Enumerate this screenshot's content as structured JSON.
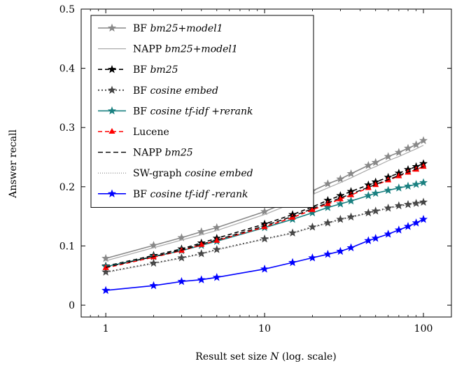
{
  "chart_data": {
    "type": "line",
    "xlabel_prefix": "Result set size ",
    "xlabel_var": "N",
    "xlabel_suffix": " (log. scale)",
    "ylabel": "Answer recall",
    "xscale": "log",
    "xlim": [
      0.7,
      150
    ],
    "ylim": [
      -0.02,
      0.5
    ],
    "xticks": [
      {
        "v": 1,
        "label": "1"
      },
      {
        "v": 10,
        "label": "10"
      },
      {
        "v": 100,
        "label": "100"
      }
    ],
    "yticks": [
      {
        "v": 0,
        "label": "0"
      },
      {
        "v": 0.1,
        "label": "0.1"
      },
      {
        "v": 0.2,
        "label": "0.2"
      },
      {
        "v": 0.3,
        "label": "0.3"
      },
      {
        "v": 0.4,
        "label": "0.4"
      },
      {
        "v": 0.5,
        "label": "0.5"
      }
    ],
    "grid": false,
    "legend_position": "top-left",
    "x": [
      1,
      2,
      3,
      4,
      5,
      10,
      15,
      20,
      25,
      30,
      35,
      45,
      50,
      60,
      70,
      80,
      90,
      100
    ],
    "series": [
      {
        "name": "BF",
        "name_italic": "bm25+model1",
        "color": "#888888",
        "dash": "",
        "marker": "star",
        "width": 1.6,
        "values": [
          0.079,
          0.101,
          0.114,
          0.124,
          0.131,
          0.158,
          0.178,
          0.193,
          0.205,
          0.213,
          0.222,
          0.236,
          0.241,
          0.251,
          0.258,
          0.265,
          0.271,
          0.278
        ]
      },
      {
        "name": "NAPP",
        "name_italic": "bm25+model1",
        "color": "#aaaaaa",
        "dash": "",
        "marker": "none",
        "width": 1.2,
        "values": [
          0.075,
          0.097,
          0.11,
          0.119,
          0.126,
          0.153,
          0.172,
          0.187,
          0.198,
          0.207,
          0.215,
          0.229,
          0.234,
          0.244,
          0.251,
          0.258,
          0.264,
          0.27
        ]
      },
      {
        "name": "BF",
        "name_italic": "bm25",
        "color": "#000000",
        "dash": "6,4",
        "marker": "star",
        "width": 1.6,
        "values": [
          0.066,
          0.084,
          0.095,
          0.105,
          0.113,
          0.137,
          0.153,
          0.166,
          0.177,
          0.185,
          0.192,
          0.203,
          0.208,
          0.216,
          0.223,
          0.229,
          0.234,
          0.239
        ]
      },
      {
        "name": "BF",
        "name_italic": "cosine embed",
        "color": "#444444",
        "dash": "2,3",
        "marker": "star",
        "width": 1.8,
        "values": [
          0.056,
          0.071,
          0.08,
          0.087,
          0.094,
          0.112,
          0.122,
          0.132,
          0.139,
          0.145,
          0.149,
          0.156,
          0.159,
          0.164,
          0.168,
          0.17,
          0.172,
          0.174
        ]
      },
      {
        "name": "BF",
        "name_italic": "cosine tf-idf +rerank",
        "color": "#1a8080",
        "dash": "",
        "marker": "star",
        "width": 1.6,
        "values": [
          0.065,
          0.082,
          0.092,
          0.101,
          0.108,
          0.131,
          0.145,
          0.156,
          0.165,
          0.171,
          0.176,
          0.185,
          0.189,
          0.194,
          0.198,
          0.201,
          0.204,
          0.207
        ]
      },
      {
        "name": "Lucene",
        "name_italic": "",
        "color": "#ff0000",
        "dash": "6,4",
        "marker": "triangle",
        "width": 1.6,
        "values": [
          0.063,
          0.081,
          0.092,
          0.102,
          0.109,
          0.132,
          0.148,
          0.161,
          0.171,
          0.179,
          0.186,
          0.198,
          0.203,
          0.211,
          0.218,
          0.224,
          0.229,
          0.234
        ]
      },
      {
        "name": "NAPP",
        "name_italic": "bm25",
        "color": "#000000",
        "dash": "7,4",
        "marker": "none",
        "width": 1.4,
        "values": [
          0.064,
          0.082,
          0.093,
          0.103,
          0.11,
          0.134,
          0.15,
          0.163,
          0.173,
          0.181,
          0.188,
          0.199,
          0.204,
          0.212,
          0.219,
          0.225,
          0.23,
          0.234
        ]
      },
      {
        "name": "SW-graph",
        "name_italic": "cosine embed",
        "color": "#777777",
        "dash": "1,2",
        "marker": "none",
        "width": 1.0,
        "values": [
          0.055,
          0.07,
          0.079,
          0.086,
          0.093,
          0.111,
          0.121,
          0.131,
          0.138,
          0.144,
          0.148,
          0.155,
          0.158,
          0.163,
          0.167,
          0.169,
          0.171,
          0.173
        ]
      },
      {
        "name": "BF",
        "name_italic": "cosine tf-idf -rerank",
        "color": "#0000ff",
        "dash": "",
        "marker": "star",
        "width": 1.6,
        "values": [
          0.025,
          0.033,
          0.04,
          0.043,
          0.047,
          0.061,
          0.072,
          0.08,
          0.086,
          0.091,
          0.097,
          0.109,
          0.113,
          0.12,
          0.127,
          0.133,
          0.139,
          0.145
        ]
      }
    ]
  }
}
